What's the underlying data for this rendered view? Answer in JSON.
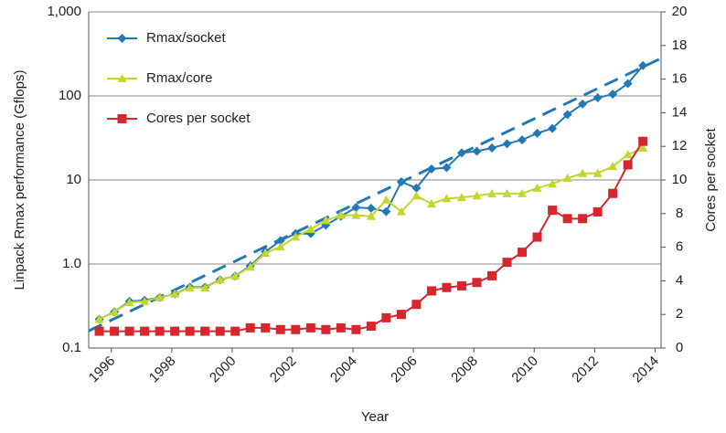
{
  "chart_data": {
    "type": "line",
    "x_label": "Year",
    "y_label": "Linpack Rmax performance (Gflops)",
    "y2_label": "Cores per socket",
    "x": [
      1995.6,
      1996.1,
      1996.6,
      1997.1,
      1997.6,
      1998.1,
      1998.6,
      1999.1,
      1999.6,
      2000.1,
      2000.6,
      2001.1,
      2001.6,
      2002.1,
      2002.6,
      2003.1,
      2003.6,
      2004.1,
      2004.6,
      2005.1,
      2005.6,
      2006.1,
      2006.6,
      2007.1,
      2007.6,
      2008.1,
      2008.6,
      2009.1,
      2009.6,
      2010.1,
      2010.6,
      2011.1,
      2011.6,
      2012.1,
      2012.6,
      2013.1,
      2013.6
    ],
    "series": [
      {
        "name": "Rmax/socket",
        "color": "#2179b5",
        "marker": "diamond",
        "values": [
          0.22,
          0.27,
          0.36,
          0.37,
          0.4,
          0.44,
          0.53,
          0.53,
          0.65,
          0.72,
          0.95,
          1.4,
          1.9,
          2.3,
          2.3,
          2.9,
          3.7,
          4.7,
          4.6,
          4.2,
          9.5,
          8,
          13.5,
          14,
          21,
          22,
          24,
          27,
          30,
          36,
          41,
          60,
          80,
          95,
          105,
          140,
          230
        ]
      },
      {
        "name": "Rmax/core",
        "color": "#c3d52e",
        "marker": "triangle",
        "values": [
          0.22,
          0.27,
          0.35,
          0.36,
          0.4,
          0.44,
          0.52,
          0.52,
          0.65,
          0.72,
          0.92,
          1.35,
          1.6,
          2.1,
          2.6,
          3.3,
          3.8,
          3.8,
          3.7,
          5.8,
          4.2,
          6.5,
          5.2,
          6,
          6.2,
          6.5,
          6.9,
          6.9,
          6.9,
          8,
          9,
          10.5,
          12,
          12,
          14.5,
          20,
          24
        ]
      },
      {
        "name": "Cores per socket",
        "color": "#d7262e",
        "marker": "square",
        "axis": "y2",
        "values": [
          1,
          1,
          1,
          1,
          1,
          1,
          1,
          1,
          1,
          1,
          1.2,
          1.2,
          1.1,
          1.1,
          1.2,
          1.1,
          1.2,
          1.1,
          1.3,
          1.8,
          2,
          2.6,
          3.4,
          3.6,
          3.7,
          3.9,
          4.3,
          5.1,
          5.7,
          6.6,
          8.2,
          7.7,
          7.7,
          8.1,
          9.2,
          10.9,
          12.3
        ]
      }
    ],
    "trend_line": {
      "color": "#2179b5",
      "x": [
        1995.25,
        2014.2
      ],
      "values": [
        0.16,
        280
      ]
    },
    "xlim": [
      1995.25,
      2014.2
    ],
    "xticks": [
      1996,
      1998,
      2000,
      2002,
      2004,
      2006,
      2008,
      2010,
      2012,
      2014
    ],
    "ylim": [
      0.1,
      1000
    ],
    "y_scale": "log",
    "yticks": [
      0.1,
      {
        "value": 1,
        "label": "1.0"
      },
      10,
      100,
      {
        "value": 1000,
        "label": "1,000"
      }
    ],
    "y2lim": [
      0,
      20
    ],
    "y2ticks": [
      0,
      2,
      4,
      6,
      8,
      10,
      12,
      14,
      16,
      18,
      20
    ],
    "grid": true,
    "legend": "upper left"
  }
}
